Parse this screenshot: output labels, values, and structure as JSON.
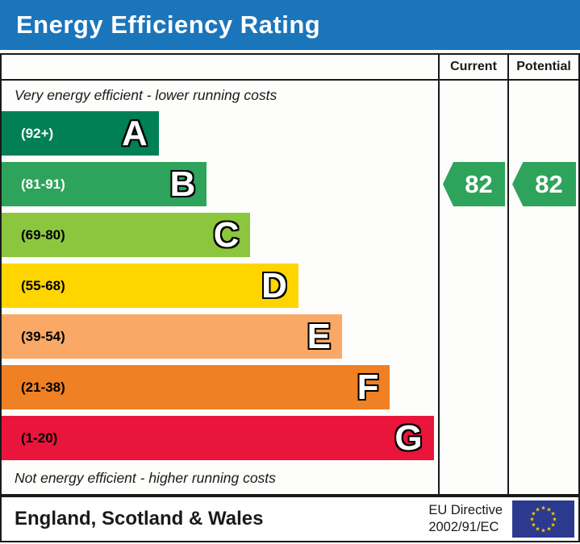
{
  "title": "Energy Efficiency Rating",
  "colors": {
    "header_bg": "#1b75bb",
    "border": "#1a1a1a",
    "eu_flag_bg": "#2b3a8f",
    "eu_star": "#ffcc00"
  },
  "columns": {
    "current": "Current",
    "potential": "Potential"
  },
  "top_note": "Very energy efficient - lower running costs",
  "bottom_note": "Not energy efficient - higher running costs",
  "bands": [
    {
      "letter": "A",
      "range": "(92+)",
      "color": "#008054",
      "width_pct": 36,
      "text_color": "#ffffff"
    },
    {
      "letter": "B",
      "range": "(81-91)",
      "color": "#2ea35b",
      "width_pct": 47,
      "text_color": "#ffffff"
    },
    {
      "letter": "C",
      "range": "(69-80)",
      "color": "#8cc63f",
      "width_pct": 57,
      "text_color": "#000000"
    },
    {
      "letter": "D",
      "range": "(55-68)",
      "color": "#ffd500",
      "width_pct": 68,
      "text_color": "#000000"
    },
    {
      "letter": "E",
      "range": "(39-54)",
      "color": "#f9a965",
      "width_pct": 78,
      "text_color": "#000000"
    },
    {
      "letter": "F",
      "range": "(21-38)",
      "color": "#ef8023",
      "width_pct": 89,
      "text_color": "#000000"
    },
    {
      "letter": "G",
      "range": "(1-20)",
      "color": "#e9153b",
      "width_pct": 99,
      "text_color": "#000000"
    }
  ],
  "ratings": {
    "current": {
      "value": "82",
      "band": "B",
      "color": "#2ea35b"
    },
    "potential": {
      "value": "82",
      "band": "B",
      "color": "#2ea35b"
    }
  },
  "footer": {
    "region": "England, Scotland & Wales",
    "directive_line1": "EU Directive",
    "directive_line2": "2002/91/EC"
  },
  "chart_data": {
    "type": "bar",
    "title": "Energy Efficiency Rating",
    "categories": [
      "A",
      "B",
      "C",
      "D",
      "E",
      "F",
      "G"
    ],
    "band_ranges": [
      "92+",
      "81-91",
      "69-80",
      "55-68",
      "39-54",
      "21-38",
      "1-20"
    ],
    "band_colors": [
      "#008054",
      "#2ea35b",
      "#8cc63f",
      "#ffd500",
      "#f9a965",
      "#ef8023",
      "#e9153b"
    ],
    "bar_width_pct": [
      36,
      47,
      57,
      68,
      78,
      89,
      99
    ],
    "series": [
      {
        "name": "Current",
        "values": [
          82
        ]
      },
      {
        "name": "Potential",
        "values": [
          82
        ]
      }
    ],
    "annotations": [
      "Very energy efficient - lower running costs",
      "Not energy efficient - higher running costs"
    ],
    "legend_position": "none",
    "xlabel": "",
    "ylabel": "",
    "value_scale": [
      1,
      100
    ]
  }
}
